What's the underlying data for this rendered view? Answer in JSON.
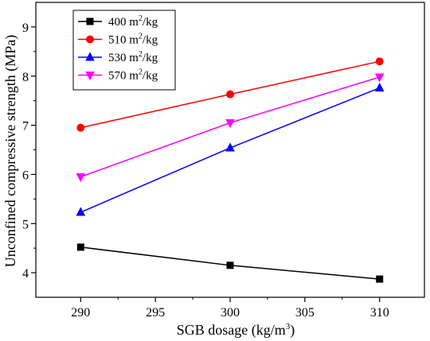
{
  "chart_data": {
    "type": "line",
    "title": "",
    "xlabel": "SGB dosage (kg/m",
    "xlabel_sup": "3",
    "xlabel_tail": ")",
    "ylabel": "Unconfined compressive strength (MPa)",
    "xlim": [
      287,
      313
    ],
    "ylim": [
      3.5,
      9.5
    ],
    "xticks": [
      290,
      295,
      300,
      305,
      310
    ],
    "yticks": [
      4,
      5,
      6,
      7,
      8,
      9
    ],
    "x": [
      290,
      300,
      310
    ],
    "grid": false,
    "legend_position": "top-left",
    "series": [
      {
        "name": "400 m",
        "sup": "2",
        "unit": "/kg",
        "marker": "square",
        "color": "#000000",
        "values": [
          4.52,
          4.15,
          3.87
        ]
      },
      {
        "name": "510 m",
        "sup": "2",
        "unit": "/kg",
        "marker": "circle",
        "color": "#ff0000",
        "values": [
          6.95,
          7.63,
          8.3
        ]
      },
      {
        "name": "530 m",
        "sup": "2",
        "unit": "/kg",
        "marker": "triangle-up",
        "color": "#0000ff",
        "values": [
          5.23,
          6.54,
          7.76
        ]
      },
      {
        "name": "570 m",
        "sup": "2",
        "unit": "/kg",
        "marker": "triangle-down",
        "color": "#ff00ff",
        "values": [
          5.95,
          7.05,
          7.98
        ]
      }
    ]
  }
}
